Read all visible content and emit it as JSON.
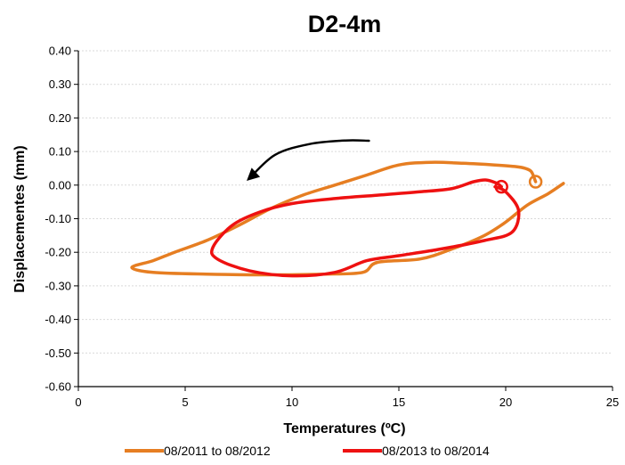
{
  "chart_data": {
    "type": "line",
    "title": "D2-4m",
    "xlabel": "Temperatures (ºC)",
    "ylabel": "Displacementes (mm)",
    "xlim": [
      0,
      25
    ],
    "ylim": [
      -0.6,
      0.4
    ],
    "xticks": [
      "0",
      "5",
      "10",
      "15",
      "20",
      "25"
    ],
    "yticks": [
      "-0.60",
      "-0.50",
      "-0.40",
      "-0.30",
      "-0.20",
      "-0.10",
      "0.00",
      "0.10",
      "0.20",
      "0.30",
      "0.40"
    ],
    "grid": "horizontal",
    "legend_position": "bottom",
    "series": [
      {
        "name": "08/2011 to 08/2012",
        "color": "#e67e22",
        "x": [
          21.4,
          21.2,
          20.9,
          20.5,
          19.5,
          18.0,
          16.5,
          15.0,
          13.5,
          12.0,
          10.5,
          9.0,
          7.5,
          6.0,
          4.5,
          3.5,
          2.5,
          3.5,
          6.0,
          9.0,
          11.5,
          13.3,
          14.0,
          16.0,
          17.5,
          19.0,
          20.0,
          21.0,
          22.0,
          22.7
        ],
        "y": [
          0.01,
          0.04,
          0.05,
          0.055,
          0.06,
          0.065,
          0.068,
          0.06,
          0.03,
          0.0,
          -0.03,
          -0.07,
          -0.12,
          -0.165,
          -0.2,
          -0.225,
          -0.245,
          -0.26,
          -0.265,
          -0.267,
          -0.265,
          -0.26,
          -0.23,
          -0.22,
          -0.19,
          -0.15,
          -0.11,
          -0.06,
          -0.025,
          0.005
        ]
      },
      {
        "name": "08/2013 to 08/2014",
        "color": "#ee1111",
        "x": [
          19.8,
          19.6,
          19.1,
          18.5,
          17.5,
          16.0,
          14.0,
          12.0,
          10.0,
          8.5,
          7.2,
          6.3,
          6.5,
          8.0,
          10.0,
          12.0,
          13.5,
          15.0,
          17.0,
          19.0,
          20.3,
          20.6,
          20.0,
          19.5
        ],
        "y": [
          -0.005,
          0.005,
          0.015,
          0.01,
          -0.01,
          -0.02,
          -0.03,
          -0.04,
          -0.055,
          -0.08,
          -0.12,
          -0.185,
          -0.22,
          -0.255,
          -0.27,
          -0.26,
          -0.225,
          -0.21,
          -0.19,
          -0.165,
          -0.14,
          -0.075,
          -0.02,
          -0.005
        ]
      }
    ],
    "annotations": [
      {
        "type": "arrow",
        "color": "#000000",
        "x": [
          13.6,
          12.5,
          10.8,
          9.2,
          8.0
        ],
        "y": [
          0.132,
          0.133,
          0.122,
          0.09,
          0.02
        ]
      },
      {
        "type": "circle-marker",
        "color": "#e67e22",
        "x": 21.4,
        "y": 0.01
      },
      {
        "type": "circle-marker",
        "color": "#ee1111",
        "x": 19.8,
        "y": -0.005
      }
    ]
  }
}
